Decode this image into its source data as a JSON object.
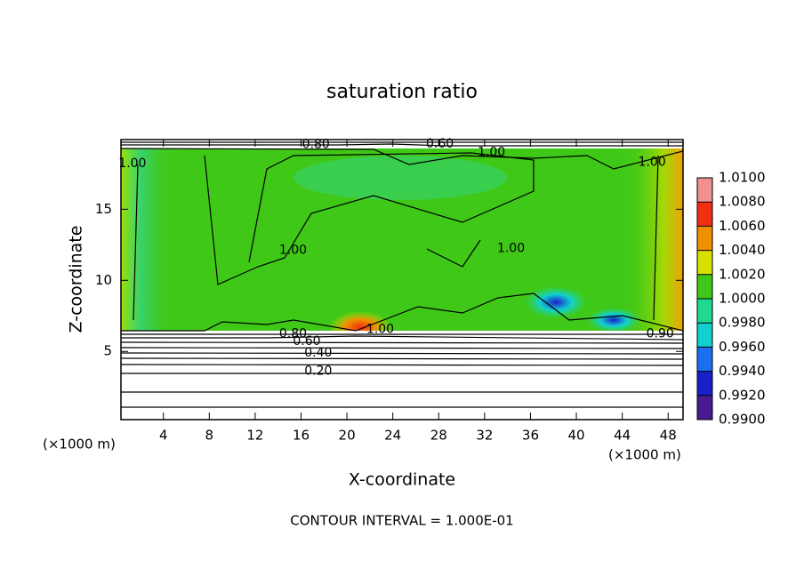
{
  "chart_data": {
    "type": "contour",
    "title": "saturation ratio",
    "xlabel": "X-coordinate",
    "ylabel": "Z-coordinate",
    "x_unit": "(×1000 m)",
    "y_unit": "(×1000 m)",
    "footer": "CONTOUR INTERVAL = 1.000E-01",
    "xlim": [
      0.3,
      49.3
    ],
    "ylim": [
      0.2,
      19.9
    ],
    "xticks": [
      4,
      8,
      12,
      16,
      20,
      24,
      28,
      32,
      36,
      40,
      44,
      48
    ],
    "yticks": [
      5,
      10,
      15
    ],
    "colorbar": {
      "ticks": [
        {
          "value": 0.99,
          "label": "0.9900"
        },
        {
          "value": 0.992,
          "label": "0.9920"
        },
        {
          "value": 0.994,
          "label": "0.9940"
        },
        {
          "value": 0.996,
          "label": "0.9960"
        },
        {
          "value": 0.998,
          "label": "0.9980"
        },
        {
          "value": 1.0,
          "label": "1.0000"
        },
        {
          "value": 1.002,
          "label": "1.0020"
        },
        {
          "value": 1.004,
          "label": "1.0040"
        },
        {
          "value": 1.006,
          "label": "1.0060"
        },
        {
          "value": 1.008,
          "label": "1.0080"
        },
        {
          "value": 1.01,
          "label": "1.0100"
        }
      ],
      "colors": [
        "#4a1a90",
        "#1a20c8",
        "#1a70f0",
        "#10d0d0",
        "#20d890",
        "#40c818",
        "#d8e000",
        "#f09000",
        "#f03010",
        "#f09090"
      ]
    },
    "annotations": [
      {
        "text": "0.80",
        "x": 17.3,
        "y": 19.55
      },
      {
        "text": "0.60",
        "x": 28.1,
        "y": 19.6
      },
      {
        "text": "1.00",
        "x": 32.6,
        "y": 19.0
      },
      {
        "text": "1.00",
        "x": 1.3,
        "y": 18.2
      },
      {
        "text": "1.00",
        "x": 46.6,
        "y": 18.3
      },
      {
        "text": "1.00",
        "x": 15.3,
        "y": 12.1
      },
      {
        "text": "1.00",
        "x": 34.3,
        "y": 12.25
      },
      {
        "text": "1.00",
        "x": 22.9,
        "y": 6.55
      },
      {
        "text": "0.80",
        "x": 15.3,
        "y": 6.25
      },
      {
        "text": "0.60",
        "x": 16.5,
        "y": 5.7
      },
      {
        "text": "0.40",
        "x": 17.5,
        "y": 4.9
      },
      {
        "text": "0.20",
        "x": 17.5,
        "y": 3.6
      },
      {
        "text": "0.90",
        "x": 47.3,
        "y": 6.25
      }
    ]
  }
}
